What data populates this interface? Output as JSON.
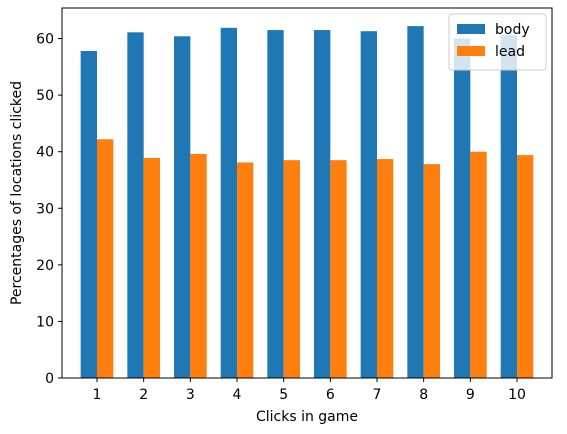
{
  "chart_data": {
    "type": "bar",
    "categories": [
      "1",
      "2",
      "3",
      "4",
      "5",
      "6",
      "7",
      "8",
      "9",
      "10"
    ],
    "series": [
      {
        "name": "body",
        "color": "#1f77b4",
        "values": [
          57.8,
          61.1,
          60.4,
          61.9,
          61.5,
          61.5,
          61.3,
          62.2,
          60.0,
          60.6
        ]
      },
      {
        "name": "lead",
        "color": "#ff7f0e",
        "values": [
          42.2,
          38.9,
          39.6,
          38.1,
          38.5,
          38.5,
          38.7,
          37.8,
          40.0,
          39.4
        ]
      }
    ],
    "xlabel": "Clicks in game",
    "ylabel": "Percentages of locations clicked",
    "ylim": [
      0,
      65.4
    ],
    "yticks": [
      0,
      10,
      20,
      30,
      40,
      50,
      60
    ],
    "grid": false,
    "legend": "top-right"
  }
}
